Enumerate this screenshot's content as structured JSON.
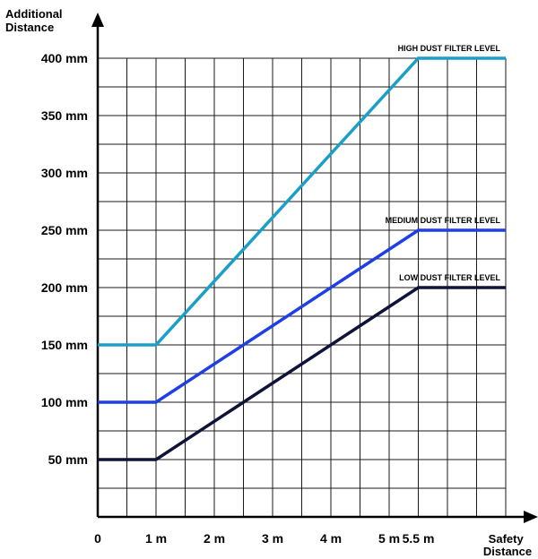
{
  "chart_data": {
    "type": "line",
    "title": "",
    "ylabel": "Additional Distance",
    "xlabel": "Safety Distance",
    "xlim": [
      0,
      7
    ],
    "ylim": [
      0,
      400
    ],
    "x_ticks": [
      {
        "value": 0,
        "label": "0"
      },
      {
        "value": 1,
        "label": "1 m"
      },
      {
        "value": 2,
        "label": "2 m"
      },
      {
        "value": 3,
        "label": "3 m"
      },
      {
        "value": 4,
        "label": "4 m"
      },
      {
        "value": 5,
        "label": "5 m"
      },
      {
        "value": 5.5,
        "label": "5.5 m"
      }
    ],
    "y_ticks": [
      {
        "value": 50,
        "label": "50 mm"
      },
      {
        "value": 100,
        "label": "100 mm"
      },
      {
        "value": 150,
        "label": "150 mm"
      },
      {
        "value": 200,
        "label": "200 mm"
      },
      {
        "value": 250,
        "label": "250 mm"
      },
      {
        "value": 300,
        "label": "300 mm"
      },
      {
        "value": 350,
        "label": "350 mm"
      },
      {
        "value": 400,
        "label": "400 mm"
      }
    ],
    "grid": true,
    "series": [
      {
        "name": "HIGH DUST FILTER LEVEL",
        "color": "#1a9fc7",
        "x": [
          0,
          1,
          5.5,
          7
        ],
        "y": [
          150,
          150,
          400,
          400
        ]
      },
      {
        "name": "MEDIUM DUST FILTER LEVEL",
        "color": "#1f3fe6",
        "x": [
          0,
          1,
          5.5,
          7
        ],
        "y": [
          100,
          100,
          250,
          250
        ]
      },
      {
        "name": "LOW DUST FILTER LEVEL",
        "color": "#0f1338",
        "x": [
          0,
          1,
          5.5,
          7
        ],
        "y": [
          50,
          50,
          200,
          200
        ]
      }
    ]
  }
}
